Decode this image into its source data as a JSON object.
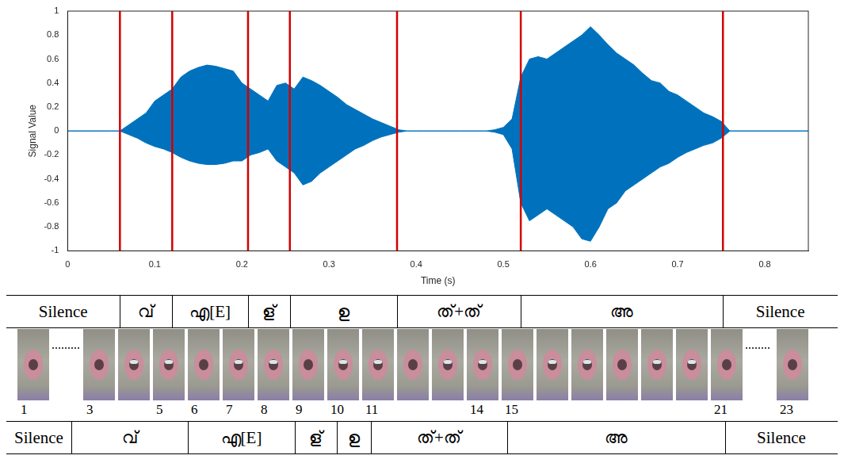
{
  "chart_data": {
    "type": "line",
    "x_label": "Time (s)",
    "y_label": "Signal Value",
    "x": [
      0,
      0.05,
      0.06,
      0.07,
      0.08,
      0.09,
      0.1,
      0.11,
      0.12,
      0.13,
      0.14,
      0.15,
      0.16,
      0.17,
      0.18,
      0.19,
      0.2,
      0.21,
      0.22,
      0.23,
      0.24,
      0.25,
      0.26,
      0.27,
      0.28,
      0.29,
      0.3,
      0.31,
      0.32,
      0.33,
      0.34,
      0.35,
      0.36,
      0.37,
      0.38,
      0.39,
      0.4,
      0.41,
      0.42,
      0.43,
      0.44,
      0.45,
      0.46,
      0.47,
      0.48,
      0.49,
      0.5,
      0.51,
      0.52,
      0.53,
      0.54,
      0.55,
      0.56,
      0.57,
      0.58,
      0.59,
      0.6,
      0.61,
      0.62,
      0.63,
      0.64,
      0.65,
      0.66,
      0.67,
      0.68,
      0.69,
      0.7,
      0.71,
      0.72,
      0.73,
      0.74,
      0.75,
      0.76,
      0.85
    ],
    "series": [
      {
        "color": "#0072bd",
        "values": [
          0,
          0,
          0,
          0.05,
          0.1,
          0.15,
          0.25,
          0.3,
          0.35,
          0.45,
          0.5,
          0.53,
          0.55,
          0.54,
          0.52,
          0.5,
          0.4,
          0.35,
          0.3,
          0.25,
          0.38,
          0.4,
          0.35,
          0.45,
          0.42,
          0.38,
          0.33,
          0.28,
          0.22,
          0.18,
          0.14,
          0.1,
          0.07,
          0.04,
          0.01,
          0,
          0,
          0,
          0,
          0,
          0,
          0,
          0,
          0,
          0,
          0.01,
          0.03,
          0.1,
          0.45,
          0.6,
          0.62,
          0.6,
          0.65,
          0.7,
          0.75,
          0.8,
          0.87,
          0.8,
          0.72,
          0.65,
          0.6,
          0.55,
          0.48,
          0.42,
          0.4,
          0.33,
          0.3,
          0.25,
          0.2,
          0.15,
          0.12,
          0.08,
          0,
          0
        ]
      },
      {
        "color": "#0072bd",
        "values": [
          0,
          0,
          0,
          -0.03,
          -0.06,
          -0.1,
          -0.13,
          -0.15,
          -0.18,
          -0.22,
          -0.25,
          -0.27,
          -0.28,
          -0.28,
          -0.27,
          -0.25,
          -0.25,
          -0.2,
          -0.18,
          -0.15,
          -0.25,
          -0.3,
          -0.35,
          -0.45,
          -0.42,
          -0.35,
          -0.3,
          -0.25,
          -0.2,
          -0.15,
          -0.12,
          -0.08,
          -0.05,
          -0.03,
          -0.01,
          0,
          0,
          0,
          0,
          0,
          0,
          0,
          0,
          0,
          0,
          -0.01,
          -0.03,
          -0.15,
          -0.6,
          -0.75,
          -0.7,
          -0.65,
          -0.7,
          -0.75,
          -0.8,
          -0.9,
          -0.92,
          -0.8,
          -0.65,
          -0.6,
          -0.5,
          -0.45,
          -0.4,
          -0.35,
          -0.3,
          -0.27,
          -0.22,
          -0.18,
          -0.15,
          -0.12,
          -0.1,
          -0.06,
          0,
          0
        ]
      }
    ],
    "xlim": [
      0,
      0.85
    ],
    "xticks": [
      0,
      0.1,
      0.2,
      0.3,
      0.4,
      0.5,
      0.6,
      0.7,
      0.8
    ],
    "ylim": [
      -1,
      1
    ],
    "yticks": [
      -1,
      -0.8,
      -0.6,
      -0.4,
      -0.2,
      0,
      0.2,
      0.4,
      0.6,
      0.8,
      1
    ],
    "grid": false,
    "vlines": {
      "x": [
        0.06,
        0.12,
        0.207,
        0.255,
        0.378,
        0.52,
        0.752
      ],
      "color": "#d40000"
    }
  },
  "audio_segments": [
    "Silence",
    "വ്",
    "എ[E]",
    "ള്",
    "ഉ",
    "ത്+ത്",
    "അ",
    "Silence"
  ],
  "frames": [
    1,
    3,
    5,
    6,
    7,
    8,
    9,
    10,
    11,
    14,
    15,
    21,
    23
  ],
  "video_segments": [
    "Silence",
    "വ്",
    "എ[E]",
    "ള്",
    "ഉ",
    "ത്+ത്",
    "അ",
    "Silence"
  ]
}
